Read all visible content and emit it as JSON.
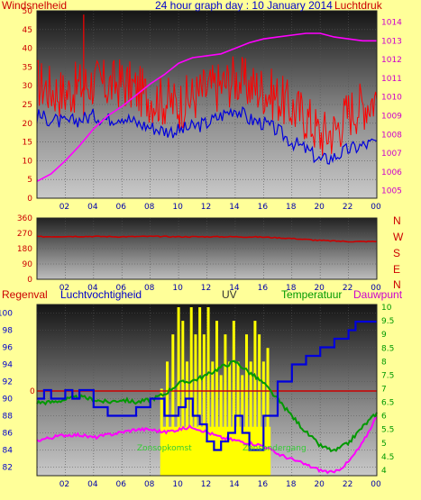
{
  "header": {
    "left_label": "Windsnelheid",
    "title": "24 hour graph day : 10 January 2014",
    "right_label": "Luchtdruk"
  },
  "bottom_header": {
    "regen": "Regenval",
    "humidity": "Luchtvochtigheid",
    "uv": "UV",
    "temp": "Temperatuur",
    "dew": "Dauwpunt"
  },
  "annotations": {
    "sunrise": "Zonsopkomst",
    "sunset": "Zonsondergang"
  },
  "wind_dir_labels": [
    "N",
    "W",
    "S",
    "E",
    "N"
  ],
  "colors": {
    "background": "#ffff99",
    "wind": "#ff0000",
    "avg_wind": "#0000dd",
    "pressure": "#ff00ff",
    "direction": "#cc0000",
    "humidity": "#0000dd",
    "temperature": "#009900",
    "dewpoint": "#ff00ff",
    "uv": "#ffff00",
    "zero_line": "#cc0000",
    "axis_title": "#cc0000",
    "title_text": "#0000cc"
  },
  "chart_data": [
    {
      "type": "line",
      "title": "24 hour graph day : 10 January 2014",
      "x_tick_labels": [
        "02",
        "04",
        "06",
        "08",
        "10",
        "12",
        "14",
        "16",
        "18",
        "20",
        "22",
        "00"
      ],
      "y_left": {
        "label": "Windsnelheid",
        "ticks": [
          0,
          5,
          10,
          15,
          20,
          25,
          30,
          35,
          40,
          45,
          50
        ],
        "ylim": [
          0,
          50
        ]
      },
      "y_right": {
        "label": "Luchtdruk",
        "ticks": [
          1005,
          1006,
          1007,
          1008,
          1009,
          1010,
          1011,
          1012,
          1013,
          1014
        ],
        "ylim": [
          1004.6,
          1014.6
        ]
      },
      "grid": true,
      "series": [
        {
          "name": "Windsnelheid",
          "axis": "left",
          "style": "noisy",
          "hours": [
            0,
            1,
            2,
            3,
            4,
            5,
            6,
            7,
            8,
            9,
            10,
            11,
            12,
            13,
            14,
            15,
            16,
            17,
            18,
            19,
            20,
            21,
            22,
            23,
            24
          ],
          "values": [
            31,
            29,
            28,
            30,
            31,
            30,
            31,
            29,
            27,
            26,
            25,
            27,
            29,
            30,
            32,
            30,
            29,
            27,
            24,
            22,
            17,
            18,
            23,
            25,
            27
          ]
        },
        {
          "name": "Gemiddelde wind",
          "axis": "left",
          "hours": [
            0,
            1,
            2,
            3,
            4,
            5,
            6,
            7,
            8,
            9,
            10,
            11,
            12,
            13,
            14,
            15,
            16,
            17,
            18,
            19,
            20,
            21,
            22,
            23,
            24
          ],
          "values": [
            22,
            21,
            20,
            21,
            22,
            21,
            22,
            20,
            19,
            18,
            18,
            19,
            20,
            22,
            24,
            21,
            20,
            18,
            15,
            13,
            10,
            11,
            13,
            14,
            15
          ]
        },
        {
          "name": "Luchtdruk",
          "axis": "right",
          "hours": [
            0,
            1,
            2,
            3,
            4,
            5,
            6,
            7,
            8,
            9,
            10,
            11,
            12,
            13,
            14,
            15,
            16,
            17,
            18,
            19,
            20,
            21,
            22,
            23,
            24
          ],
          "values": [
            1005.5,
            1005.9,
            1006.6,
            1007.4,
            1008.3,
            1009.0,
            1009.5,
            1010.1,
            1010.7,
            1011.2,
            1011.8,
            1012.1,
            1012.2,
            1012.3,
            1012.6,
            1012.9,
            1013.1,
            1013.2,
            1013.3,
            1013.4,
            1013.4,
            1013.2,
            1013.1,
            1013.0,
            1013.0
          ]
        }
      ]
    },
    {
      "type": "line",
      "title": "",
      "x_tick_labels": [
        "02",
        "04",
        "06",
        "08",
        "10",
        "12",
        "14",
        "16",
        "18",
        "20",
        "22",
        "00"
      ],
      "y_left": {
        "ticks": [
          0,
          90,
          180,
          270,
          360
        ],
        "ylim": [
          0,
          360
        ]
      },
      "y_right": {
        "tick_labels": [
          "N",
          "W",
          "S",
          "E",
          "N"
        ]
      },
      "grid": true,
      "series": [
        {
          "name": "Windrichting",
          "hours": [
            0,
            2,
            4,
            6,
            8,
            10,
            12,
            14,
            16,
            18,
            20,
            22,
            24
          ],
          "values": [
            250,
            252,
            252,
            250,
            252,
            250,
            250,
            250,
            248,
            240,
            228,
            222,
            222
          ]
        }
      ]
    },
    {
      "type": "line",
      "title": "",
      "x_tick_labels": [
        "02",
        "04",
        "06",
        "08",
        "10",
        "12",
        "14",
        "16",
        "18",
        "20",
        "22",
        "00"
      ],
      "y_left": {
        "label": "Luchtvochtigheid",
        "ticks": [
          82,
          84,
          86,
          88,
          90,
          92,
          94,
          96,
          98,
          100
        ],
        "ylim": [
          81,
          101
        ]
      },
      "y_right": {
        "label": "Temperatuur",
        "ticks": [
          4,
          4.5,
          5,
          5.5,
          6,
          6.5,
          7,
          7.5,
          8,
          8.5,
          9,
          9.5,
          10
        ],
        "ylim": [
          3.8,
          10.1
        ]
      },
      "regen_zero_label": "0",
      "grid": true,
      "series": [
        {
          "name": "Luchtvochtigheid",
          "axis": "left",
          "style": "step",
          "hours": [
            0,
            0.5,
            1,
            1.5,
            2,
            2.5,
            3,
            4,
            5,
            6,
            7,
            8,
            9,
            10,
            10.5,
            11,
            11.5,
            12,
            12.5,
            13,
            13.5,
            14,
            14.5,
            15,
            16,
            17,
            18,
            19,
            20,
            21,
            22,
            22.5,
            23,
            24
          ],
          "values": [
            90,
            91,
            90,
            90,
            91,
            90,
            91,
            89,
            88,
            88,
            89,
            90,
            88,
            89,
            90,
            88,
            87,
            85,
            84,
            85,
            86,
            88,
            86,
            84,
            88,
            92,
            94,
            95,
            96,
            97,
            98,
            99,
            99,
            99
          ]
        },
        {
          "name": "Temperatuur",
          "axis": "right",
          "hours": [
            0,
            1,
            2,
            3,
            4,
            5,
            6,
            7,
            8,
            9,
            10,
            11,
            12,
            13,
            14,
            15,
            16,
            17,
            18,
            19,
            20,
            21,
            22,
            23,
            24
          ],
          "values": [
            6.5,
            6.5,
            6.6,
            6.7,
            6.6,
            6.5,
            6.6,
            6.5,
            6.6,
            6.8,
            7.2,
            7.3,
            7.5,
            7.8,
            8.0,
            7.6,
            7.2,
            6.6,
            6.0,
            5.4,
            4.9,
            4.7,
            5.0,
            5.6,
            6.1
          ]
        },
        {
          "name": "Dauwpunt",
          "axis": "right",
          "hours": [
            0,
            1,
            2,
            3,
            4,
            5,
            6,
            7,
            8,
            9,
            10,
            11,
            12,
            13,
            14,
            15,
            16,
            17,
            18,
            19,
            20,
            21,
            22,
            23,
            24
          ],
          "values": [
            5.1,
            5.2,
            5.3,
            5.3,
            5.2,
            5.3,
            5.4,
            5.5,
            5.5,
            5.4,
            5.5,
            5.6,
            5.4,
            5.2,
            5.1,
            5.0,
            4.9,
            4.6,
            4.4,
            4.2,
            4.0,
            3.9,
            4.3,
            5.0,
            6.0
          ]
        },
        {
          "name": "UV",
          "axis": "right",
          "style": "bars",
          "hours": [
            8.8,
            9.2,
            9.6,
            10,
            10.3,
            10.6,
            10.9,
            11.2,
            11.5,
            11.8,
            12.1,
            12.4,
            12.7,
            13,
            13.3,
            13.6,
            13.9,
            14.2,
            14.5,
            14.8,
            15.1,
            15.4,
            15.7,
            16,
            16.3
          ],
          "values": [
            7,
            8,
            9,
            10,
            9.5,
            8,
            10,
            9,
            10,
            9,
            10,
            8,
            9.5,
            7.5,
            9,
            8,
            9.5,
            8,
            7.5,
            9,
            8,
            9.5,
            9,
            8,
            8.5
          ]
        }
      ],
      "sunrise_hour": 8.8,
      "sunset_hour": 16.5
    }
  ]
}
